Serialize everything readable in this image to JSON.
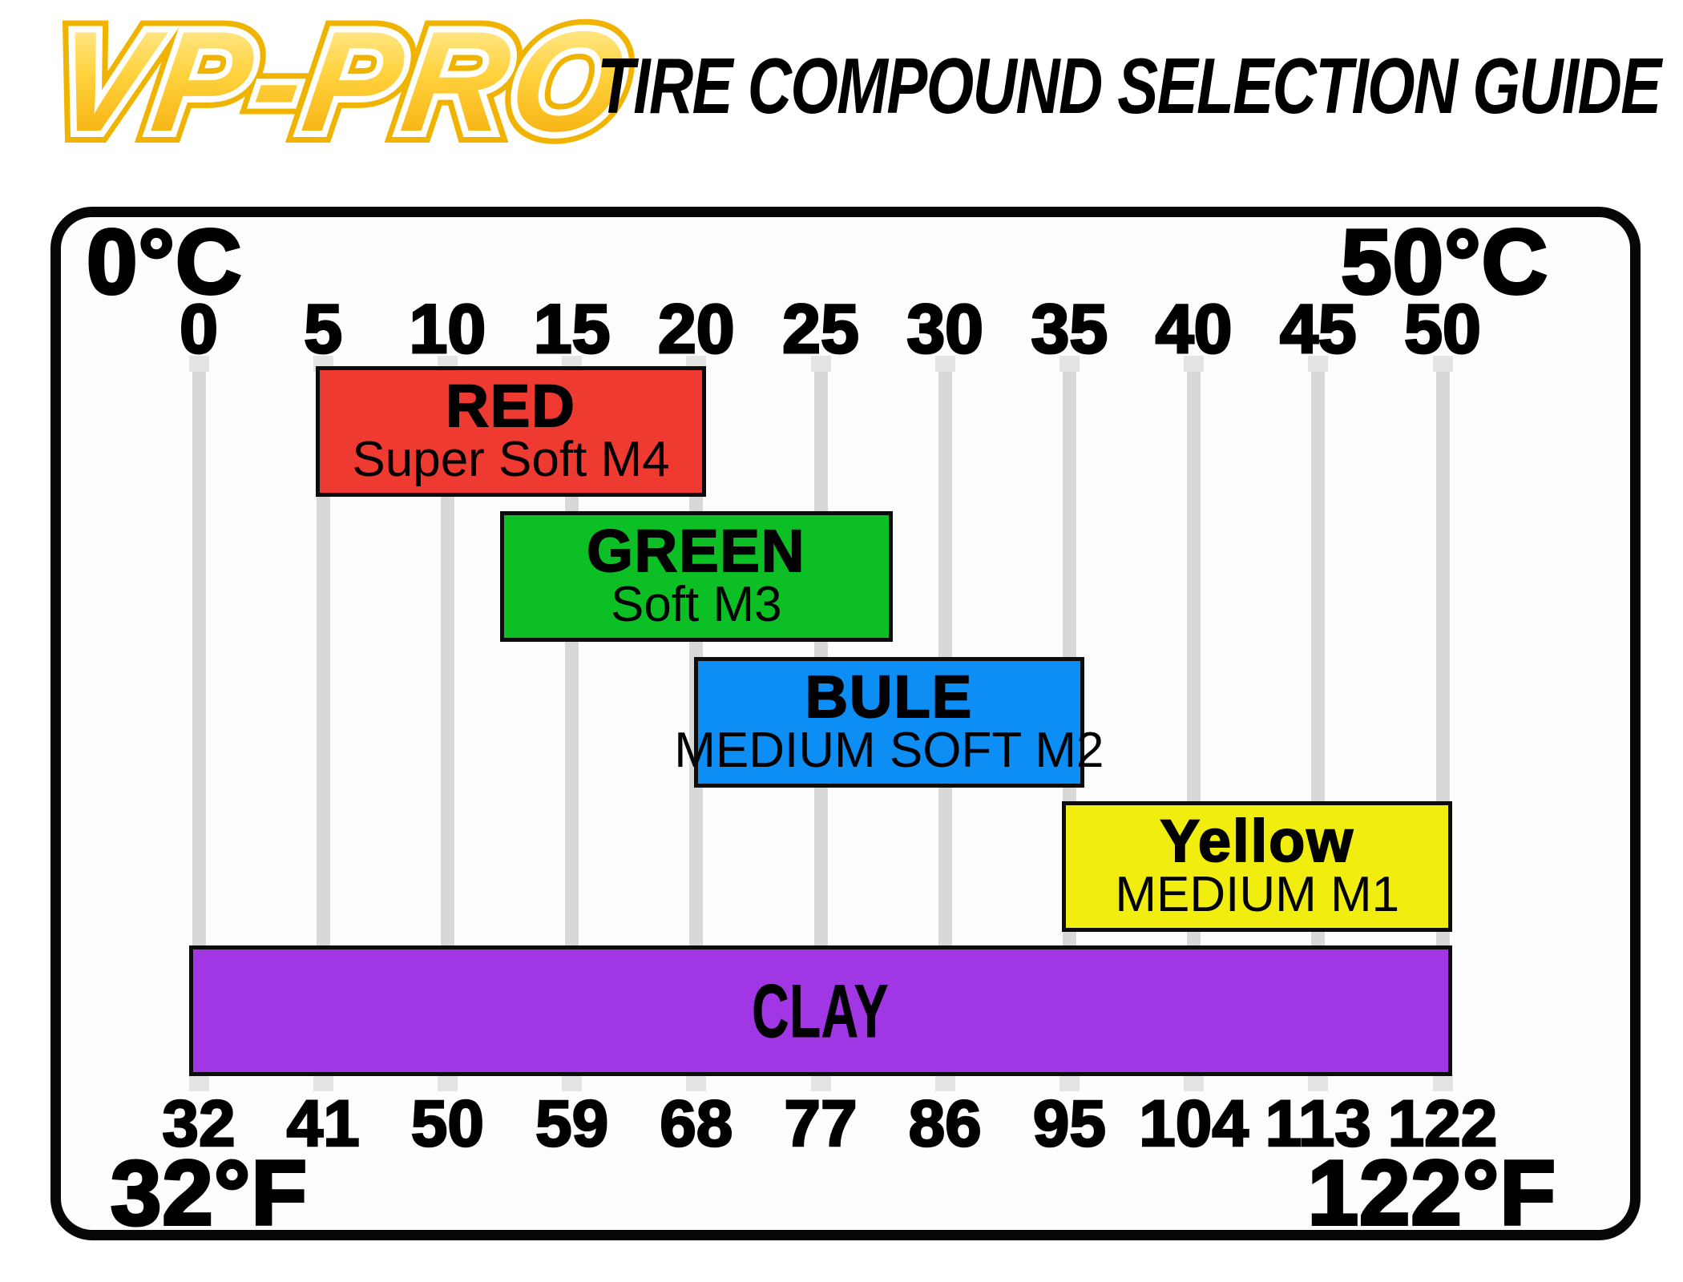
{
  "logo": {
    "text": "VP-PRO",
    "fill_top": "#fff3b0",
    "fill_bottom": "#f3a600",
    "outline_inner": "#ffffff",
    "outline_outer": "#f0b400"
  },
  "header": {
    "title": "TIRE COMPOUND SELECTION GUIDE"
  },
  "chart_data": {
    "type": "bar",
    "subtype": "horizontal-temperature-range",
    "title": "TIRE COMPOUND SELECTION GUIDE",
    "grid": true,
    "gridline_color": "#d8d8d8",
    "frame_border_color": "#060606",
    "background_color": "#ffffff",
    "x_axis_top": {
      "unit": "C",
      "min_label": "0°C",
      "max_label": "50°C",
      "ticks": [
        0,
        5,
        10,
        15,
        20,
        25,
        30,
        35,
        40,
        45,
        50
      ]
    },
    "x_axis_bottom": {
      "unit": "F",
      "min_label": "32°F",
      "max_label": "122°F",
      "ticks": [
        32,
        41,
        50,
        59,
        68,
        77,
        86,
        95,
        104,
        113,
        122
      ]
    },
    "xlim_c": [
      0,
      50
    ],
    "bars": [
      {
        "label": "RED",
        "sublabel": "Super Soft M4",
        "range_c": [
          4.7,
          20.4
        ],
        "color": "#ee3a30",
        "text_color": "#000000"
      },
      {
        "label": "GREEN",
        "sublabel": "Soft M3",
        "range_c": [
          12.1,
          27.9
        ],
        "color": "#0bbf24",
        "text_color": "#000000"
      },
      {
        "label": "BULE",
        "sublabel": "MEDIUM SOFT M2",
        "range_c": [
          19.9,
          35.6
        ],
        "color": "#0c8ef4",
        "text_color": "#000000"
      },
      {
        "label": "Yellow",
        "sublabel": "MEDIUM M1",
        "range_c": [
          34.7,
          50.4
        ],
        "color": "#f1ee0f",
        "text_color": "#000000"
      },
      {
        "label": "CLAY",
        "sublabel": "",
        "range_c": [
          -0.4,
          50.4
        ],
        "color": "#a137e4",
        "text_color": "#000000"
      }
    ]
  }
}
